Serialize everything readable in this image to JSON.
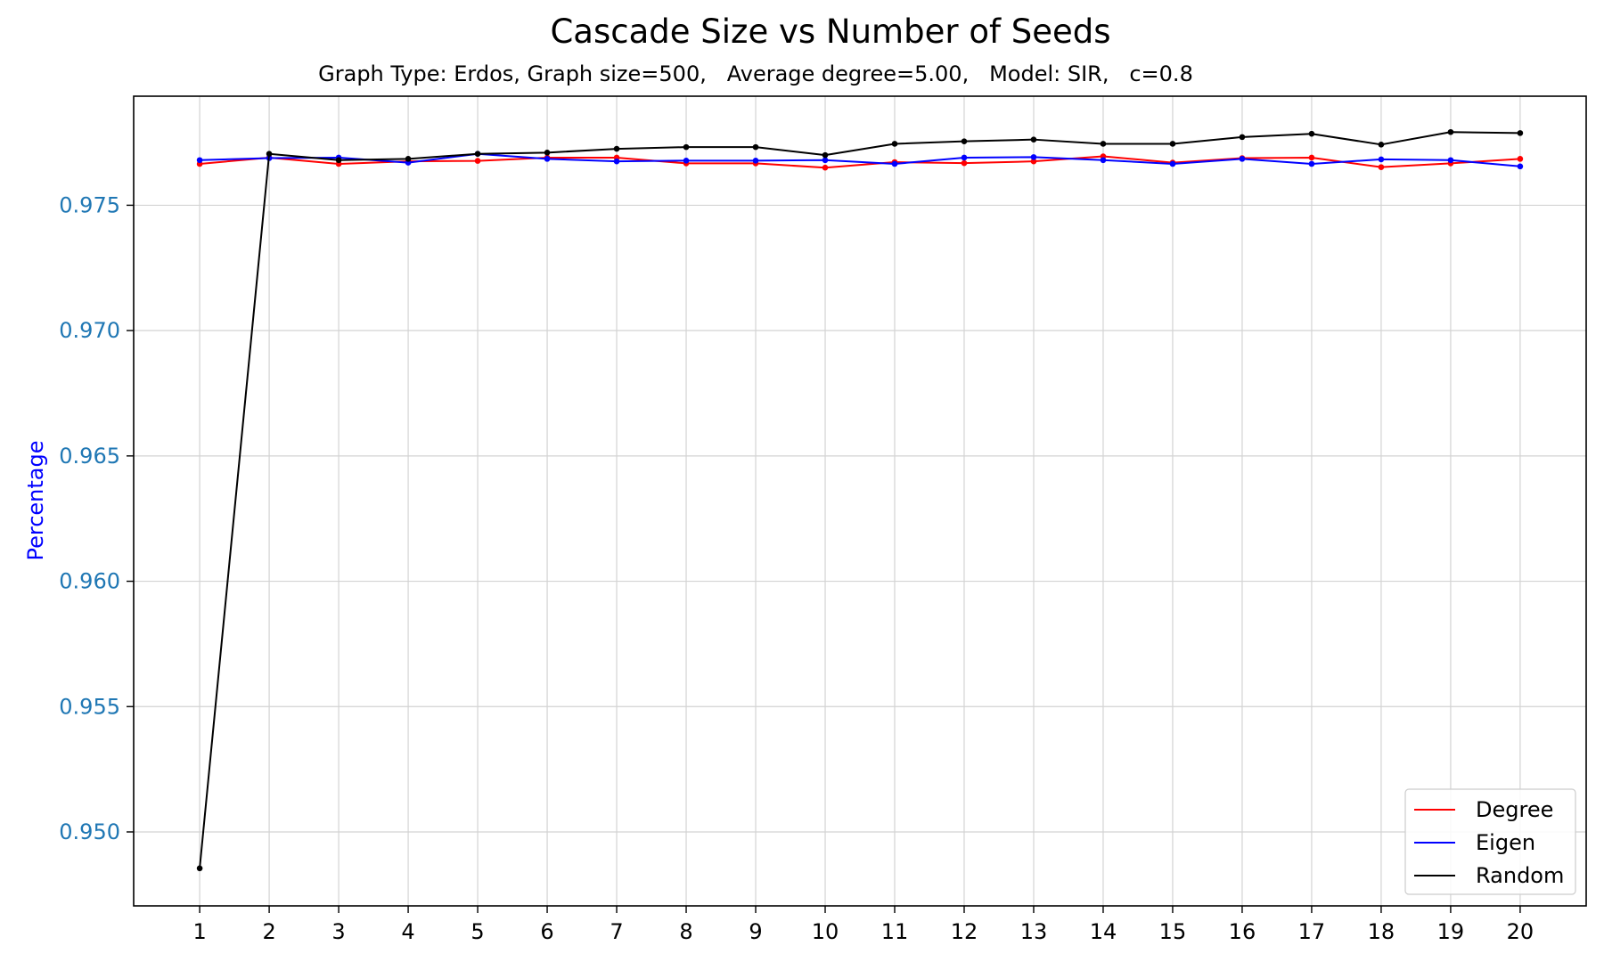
{
  "chart_data": {
    "type": "line",
    "title": "Cascade Size vs Number of Seeds",
    "subtitle": "Graph Type: Erdos, Graph size=500,   Average degree=5.00,   Model: SIR,   c=0.8",
    "xlabel": "",
    "ylabel": "Percentage",
    "x": [
      1,
      2,
      3,
      4,
      5,
      6,
      7,
      8,
      9,
      10,
      11,
      12,
      13,
      14,
      15,
      16,
      17,
      18,
      19,
      20
    ],
    "xlim": [
      0.05,
      20.95
    ],
    "ylim": [
      0.94705,
      0.97935
    ],
    "yticks": [
      0.95,
      0.955,
      0.96,
      0.965,
      0.97,
      0.975
    ],
    "ytick_labels": [
      "0.950",
      "0.955",
      "0.960",
      "0.965",
      "0.970",
      "0.975"
    ],
    "grid": true,
    "legend_position": "lower-right",
    "colors": {
      "ytick_label": "#1f77b4",
      "ylabel": "#0000ff",
      "grid": "#d3d3d3",
      "axes": "#000000"
    },
    "series": [
      {
        "name": "Degree",
        "color": "#ff0000",
        "values": [
          0.97665,
          0.9769,
          0.97665,
          0.97675,
          0.97677,
          0.9769,
          0.9769,
          0.97667,
          0.97667,
          0.9765,
          0.97672,
          0.97668,
          0.97675,
          0.97695,
          0.9767,
          0.97688,
          0.9769,
          0.97652,
          0.97667,
          0.97685
        ]
      },
      {
        "name": "Eigen",
        "color": "#0000ff",
        "values": [
          0.9768,
          0.97688,
          0.9769,
          0.9767,
          0.97705,
          0.97685,
          0.97675,
          0.97678,
          0.97678,
          0.9768,
          0.97665,
          0.9769,
          0.97692,
          0.9768,
          0.97665,
          0.97685,
          0.97665,
          0.97683,
          0.9768,
          0.97655
        ]
      },
      {
        "name": "Random",
        "color": "#000000",
        "values": [
          0.94855,
          0.97705,
          0.9768,
          0.97685,
          0.97705,
          0.9771,
          0.97725,
          0.97732,
          0.97732,
          0.977,
          0.97745,
          0.97755,
          0.97762,
          0.97745,
          0.97745,
          0.97772,
          0.97785,
          0.97742,
          0.97792,
          0.97788
        ]
      }
    ]
  }
}
